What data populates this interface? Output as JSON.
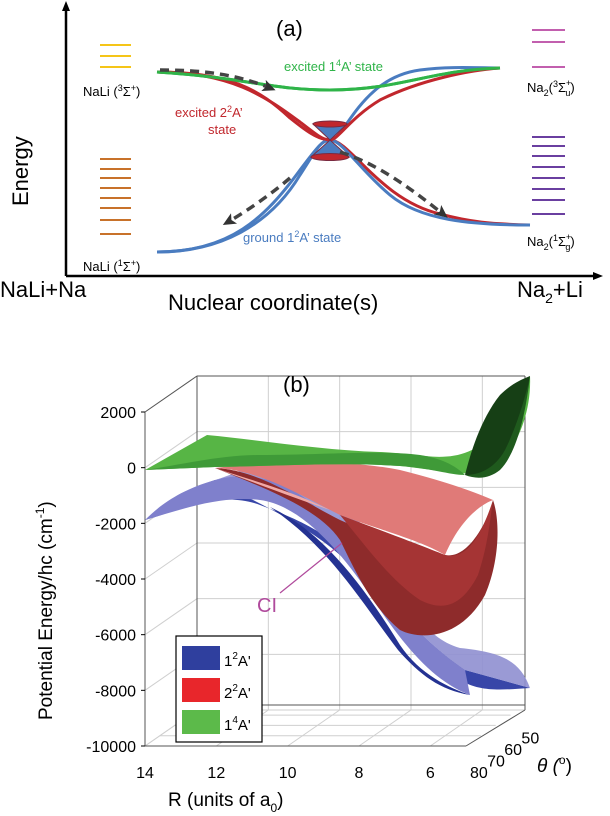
{
  "panel_a": {
    "label": "(a)",
    "y_axis_label": "Energy",
    "x_axis_label": "Nuclear coordinate(s)",
    "left_end_label": "NaLi+Na",
    "right_end_label": {
      "main": "Na",
      "sub": "2",
      "rest": "+Li"
    },
    "curves": [
      {
        "key": "excited_1_4A",
        "label_pre": "excited 1",
        "label_sup": "4",
        "label_post": "A’ state",
        "color": "#2fb449"
      },
      {
        "key": "excited_2_2A",
        "label_pre": "excited 2",
        "label_sup": "2",
        "label_post": "A’",
        "label_line2": "state",
        "color": "#c1272d"
      },
      {
        "key": "ground_1_2A",
        "label_pre": "ground 1",
        "label_sup": "2",
        "label_post": "A’ state",
        "color": "#4a7cc0"
      }
    ],
    "levels": {
      "nali_triplet": {
        "name": "NaLi",
        "sup": "3",
        "sym": "Σ",
        "plus": "+",
        "color": "#f5c518",
        "count": 3
      },
      "nali_singlet": {
        "name": "NaLi",
        "sup": "1",
        "sym": "Σ",
        "plus": "+",
        "color": "#c8722a",
        "count": 8
      },
      "na2_triplet": {
        "name": "Na",
        "sub": "2",
        "sup": "3",
        "sym": "Σ",
        "plus": "+",
        "u": "u",
        "color": "#c25fae",
        "count": 3
      },
      "na2_singlet": {
        "name": "Na",
        "sub": "2",
        "sup": "1",
        "sym": "Σ",
        "plus": "+",
        "g": "g",
        "color": "#6a3fa0",
        "count": 8
      }
    }
  },
  "panel_b": {
    "label": "(b)",
    "ylabel": "Potential Energy/hc (cm",
    "ylabel_sup": "-1",
    "ylabel_close": ")",
    "xlabel": "R (units of a",
    "xlabel_sub": "0",
    "xlabel_close": ")",
    "theta_label": "θ (",
    "theta_sup": "o",
    "theta_close": ")",
    "ci_label": "CI",
    "z_ticks": [
      "2000",
      "0",
      "-2000",
      "-4000",
      "-6000",
      "-8000",
      "-10000"
    ],
    "r_ticks": [
      "14",
      "12",
      "10",
      "8",
      "6"
    ],
    "theta_ticks": [
      "80",
      "70",
      "60",
      "50"
    ],
    "legend": [
      {
        "label": "1",
        "sup": "2",
        "post": "A'",
        "color": "#2f3f9e"
      },
      {
        "label": "2",
        "sup": "2",
        "post": "A'",
        "color": "#e8262b"
      },
      {
        "label": "1",
        "sup": "4",
        "post": "A'",
        "color": "#5cba4a"
      }
    ]
  },
  "chart_data": {
    "type": "surface",
    "title": "",
    "xlabel": "R (units of a0)",
    "ylabel": "Potential Energy/hc (cm-1)",
    "zlabel": "θ (o)",
    "xlim": [
      14,
      5
    ],
    "ylim": [
      -10000,
      2500
    ],
    "theta_range": [
      80,
      45
    ],
    "series": [
      {
        "name": "1 2A'",
        "R": [
          14,
          12,
          10,
          8,
          6,
          5
        ],
        "energy_theta80": [
          -1900,
          -1100,
          -2500,
          -4800,
          -7900,
          -8100
        ],
        "energy_theta50": [
          -1000,
          -500,
          -1300,
          -3000,
          -6000,
          -6300
        ]
      },
      {
        "name": "2 2A'",
        "R": [
          14,
          12,
          10,
          8,
          6,
          5
        ],
        "energy_theta80": [
          -50,
          -600,
          -1700,
          -2600,
          -3700,
          -2600
        ],
        "energy_theta50": [
          300,
          200,
          -400,
          -1400,
          -1800,
          -700
        ]
      },
      {
        "name": "1 4A'",
        "R": [
          14,
          12,
          10,
          8,
          6,
          5
        ],
        "energy_theta80": [
          0,
          50,
          -200,
          -400,
          -1300,
          400
        ],
        "energy_theta50": [
          500,
          600,
          500,
          400,
          700,
          2200
        ]
      }
    ]
  }
}
